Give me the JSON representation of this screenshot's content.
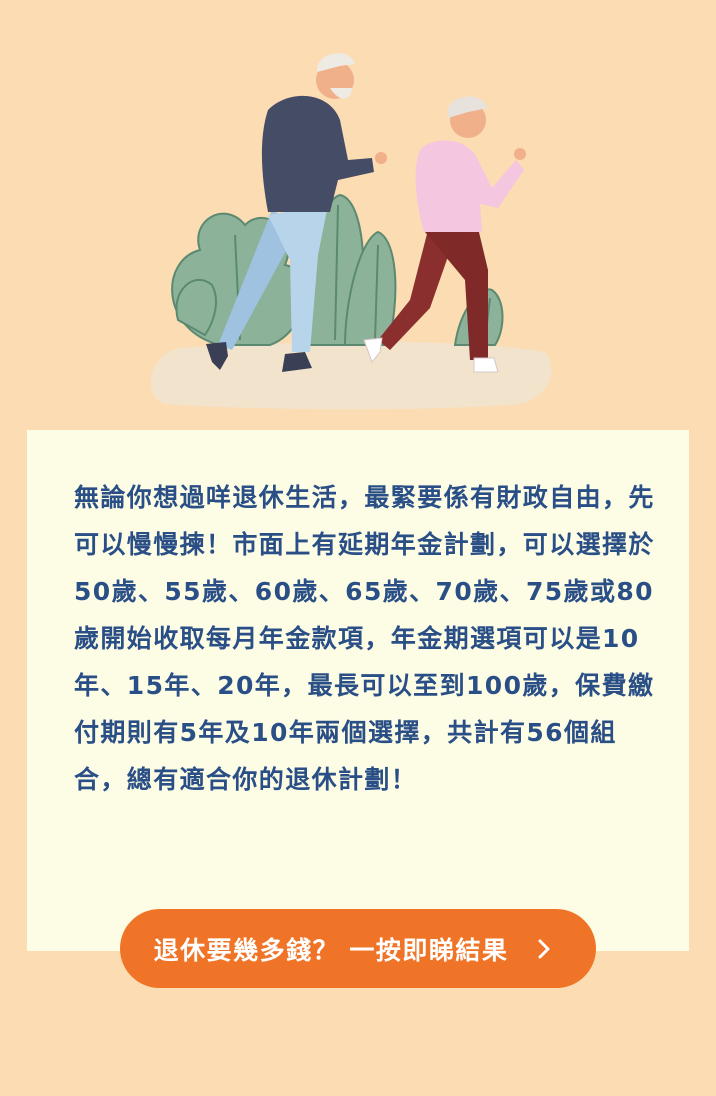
{
  "intro": {
    "paragraph": "無論你想過咩退休生活，最緊要係有財政自由，先可以慢慢揀！市面上有延期年金計劃，可以選擇於50歲、55歲、60歲、65歲、70歲、75歲或80歲開始收取每月年金款項，年金期選項可以是10年、15年、20年，最長可以至到100歲，保費繳付期則有5年及10年兩個選擇，共計有56個組合，總有適合你的退休計劃！"
  },
  "cta": {
    "label": "退休要幾多錢？ 一按即睇結果",
    "icon": "chevron-right-icon"
  },
  "colors": {
    "page_background": "#fbdcb3",
    "card_background": "#fdfde6",
    "text": "#2a4f86",
    "cta_background": "#f07427",
    "cta_text": "#ffffff"
  }
}
